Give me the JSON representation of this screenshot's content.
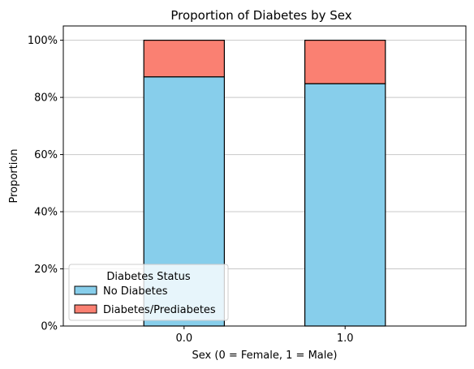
{
  "chart_data": {
    "type": "bar",
    "stacked": true,
    "title": "Proportion of Diabetes by Sex",
    "xlabel": "Sex (0 = Female, 1 = Male)",
    "ylabel": "Proportion",
    "categories": [
      "0.0",
      "1.0"
    ],
    "series": [
      {
        "name": "No Diabetes",
        "values": [
          0.872,
          0.848
        ],
        "color": "#87CEEB"
      },
      {
        "name": "Diabetes/Prediabetes",
        "values": [
          0.128,
          0.152
        ],
        "color": "#FA8072"
      }
    ],
    "ylim": [
      0,
      1.05
    ],
    "yticks": [
      0,
      0.2,
      0.4,
      0.6,
      0.8,
      1.0
    ],
    "ytick_labels": [
      "0%",
      "20%",
      "40%",
      "60%",
      "80%",
      "100%"
    ],
    "grid": "y",
    "legend": {
      "title": "Diabetes Status",
      "position": "lower-left"
    },
    "colors": {
      "grid": "#c8c8c8",
      "edge": "#000000"
    }
  }
}
